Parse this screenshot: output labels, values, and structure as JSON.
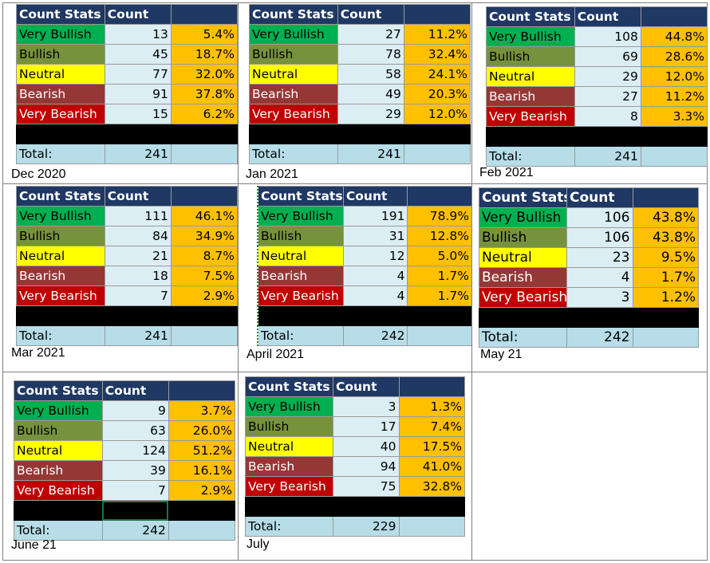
{
  "headers": {
    "stats": "Count Stats",
    "count": "Count",
    "pct": ""
  },
  "total_label": "Total:",
  "colors": {
    "Very Bullish": "#00b050",
    "Bullish": "#76923c",
    "Neutral": "#ffff00",
    "Bearish": "#953735",
    "Very Bearish": "#c00000"
  },
  "panels": [
    {
      "label": "Dec 2020",
      "rows": [
        [
          "Very Bullish",
          "13",
          "5.4%"
        ],
        [
          "Bullish",
          "45",
          "18.7%"
        ],
        [
          "Neutral",
          "77",
          "32.0%"
        ],
        [
          "Bearish",
          "91",
          "37.8%"
        ],
        [
          "Very Bearish",
          "15",
          "6.2%"
        ]
      ],
      "total": "241"
    },
    {
      "label": "Jan 2021",
      "rows": [
        [
          "Very Bullish",
          "27",
          "11.2%"
        ],
        [
          "Bullish",
          "78",
          "32.4%"
        ],
        [
          "Neutral",
          "58",
          "24.1%"
        ],
        [
          "Bearish",
          "49",
          "20.3%"
        ],
        [
          "Very Bearish",
          "29",
          "12.0%"
        ]
      ],
      "total": "241"
    },
    {
      "label": "Feb 2021",
      "rows": [
        [
          "Very Bullish",
          "108",
          "44.8%"
        ],
        [
          "Bullish",
          "69",
          "28.6%"
        ],
        [
          "Neutral",
          "29",
          "12.0%"
        ],
        [
          "Bearish",
          "27",
          "11.2%"
        ],
        [
          "Very Bearish",
          "8",
          "3.3%"
        ]
      ],
      "total": "241"
    },
    {
      "label": "Mar 2021",
      "rows": [
        [
          "Very Bullish",
          "111",
          "46.1%"
        ],
        [
          "Bullish",
          "84",
          "34.9%"
        ],
        [
          "Neutral",
          "21",
          "8.7%"
        ],
        [
          "Bearish",
          "18",
          "7.5%"
        ],
        [
          "Very Bearish",
          "7",
          "2.9%"
        ]
      ],
      "total": "241"
    },
    {
      "label": "April 2021",
      "rows": [
        [
          "Very Bullish",
          "191",
          "78.9%"
        ],
        [
          "Bullish",
          "31",
          "12.8%"
        ],
        [
          "Neutral",
          "12",
          "5.0%"
        ],
        [
          "Bearish",
          "4",
          "1.7%"
        ],
        [
          "Very Bearish",
          "4",
          "1.7%"
        ]
      ],
      "total": "242"
    },
    {
      "label": "May 21",
      "rows": [
        [
          "Very Bullish",
          "106",
          "43.8%"
        ],
        [
          "Bullish",
          "106",
          "43.8%"
        ],
        [
          "Neutral",
          "23",
          "9.5%"
        ],
        [
          "Bearish",
          "4",
          "1.7%"
        ],
        [
          "Very Bearish",
          "3",
          "1.2%"
        ]
      ],
      "total": "242"
    },
    {
      "label": "June 21",
      "rows": [
        [
          "Very Bullish",
          "9",
          "3.7%"
        ],
        [
          "Bullish",
          "63",
          "26.0%"
        ],
        [
          "Neutral",
          "124",
          "51.2%"
        ],
        [
          "Bearish",
          "39",
          "16.1%"
        ],
        [
          "Very Bearish",
          "7",
          "2.9%"
        ]
      ],
      "total": "242"
    },
    {
      "label": "July",
      "rows": [
        [
          "Very Bullish",
          "3",
          "1.3%"
        ],
        [
          "Bullish",
          "17",
          "7.4%"
        ],
        [
          "Neutral",
          "40",
          "17.5%"
        ],
        [
          "Bearish",
          "94",
          "41.0%"
        ],
        [
          "Very Bearish",
          "75",
          "32.8%"
        ]
      ],
      "total": "229"
    }
  ]
}
